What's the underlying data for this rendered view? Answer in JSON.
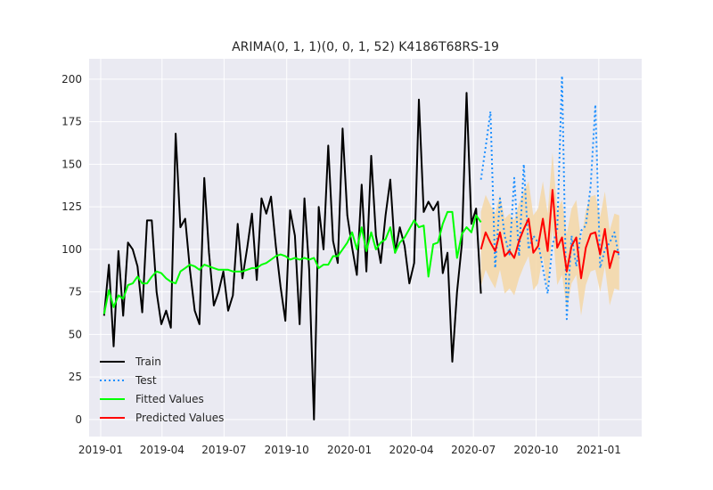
{
  "chart_data": {
    "type": "line",
    "title": "ARIMA(0, 1, 1)(0, 0, 1, 52) K4186T68RS-19",
    "xlabel": "",
    "ylabel": "",
    "ylim": [
      -10,
      212
    ],
    "x_ticks": [
      "2019-01",
      "2019-04",
      "2019-07",
      "2019-10",
      "2020-01",
      "2020-04",
      "2020-07",
      "2020-10",
      "2021-01"
    ],
    "y_ticks": [
      0,
      25,
      50,
      75,
      100,
      125,
      150,
      175,
      200
    ],
    "grid": true,
    "legend_position": "lower-left",
    "colors": {
      "background": "#eaeaf2",
      "grid": "#ffffff",
      "train": "#000000",
      "test": "#1e90ff",
      "fitted": "#00ff00",
      "predicted": "#ff0000",
      "interval": "#f5d7a6"
    },
    "series": [
      {
        "name": "Train",
        "style": "solid",
        "x": [
          "2019-01-06",
          "2019-01-13",
          "2019-01-20",
          "2019-01-27",
          "2019-02-03",
          "2019-02-10",
          "2019-02-17",
          "2019-02-24",
          "2019-03-03",
          "2019-03-10",
          "2019-03-17",
          "2019-03-24",
          "2019-03-31",
          "2019-04-07",
          "2019-04-14",
          "2019-04-21",
          "2019-04-28",
          "2019-05-05",
          "2019-05-12",
          "2019-05-19",
          "2019-05-26",
          "2019-06-02",
          "2019-06-09",
          "2019-06-16",
          "2019-06-23",
          "2019-06-30",
          "2019-07-07",
          "2019-07-14",
          "2019-07-21",
          "2019-07-28",
          "2019-08-04",
          "2019-08-11",
          "2019-08-18",
          "2019-08-25",
          "2019-09-01",
          "2019-09-08",
          "2019-09-15",
          "2019-09-22",
          "2019-09-29",
          "2019-10-06",
          "2019-10-13",
          "2019-10-20",
          "2019-10-27",
          "2019-11-03",
          "2019-11-10",
          "2019-11-17",
          "2019-11-24",
          "2019-12-01",
          "2019-12-08",
          "2019-12-15",
          "2019-12-22",
          "2019-12-29",
          "2020-01-05",
          "2020-01-12",
          "2020-01-19",
          "2020-01-26",
          "2020-02-02",
          "2020-02-09",
          "2020-02-16",
          "2020-02-23",
          "2020-03-01",
          "2020-03-08",
          "2020-03-15",
          "2020-03-22",
          "2020-03-29",
          "2020-04-05",
          "2020-04-12",
          "2020-04-19",
          "2020-04-26",
          "2020-05-03",
          "2020-05-10",
          "2020-05-17",
          "2020-05-24",
          "2020-05-31",
          "2020-06-07",
          "2020-06-14",
          "2020-06-21",
          "2020-06-28",
          "2020-07-05",
          "2020-07-12"
        ],
        "values": [
          61,
          91,
          43,
          99,
          61,
          104,
          100,
          90,
          63,
          117,
          117,
          75,
          56,
          64,
          54,
          168,
          113,
          118,
          88,
          64,
          56,
          142,
          98,
          67,
          75,
          87,
          64,
          73,
          115,
          83,
          101,
          121,
          82,
          130,
          121,
          131,
          102,
          78,
          58,
          123,
          108,
          56,
          130,
          88,
          0,
          125,
          100,
          161,
          105,
          92,
          171,
          120,
          101,
          85,
          138,
          87,
          155,
          108,
          92,
          120,
          141,
          98,
          113,
          102,
          80,
          92,
          188,
          122,
          128,
          123,
          128,
          86,
          98,
          34,
          75,
          103,
          192,
          115,
          124,
          74
        ]
      },
      {
        "name": "Test",
        "style": "dotted",
        "x": [
          "2020-07-12",
          "2020-07-19",
          "2020-07-26",
          "2020-08-02",
          "2020-08-09",
          "2020-08-16",
          "2020-08-23",
          "2020-08-30",
          "2020-09-06",
          "2020-09-13",
          "2020-09-20",
          "2020-09-27",
          "2020-10-04",
          "2020-10-11",
          "2020-10-18",
          "2020-10-25",
          "2020-11-01",
          "2020-11-08",
          "2020-11-15",
          "2020-11-22",
          "2020-11-29",
          "2020-12-06",
          "2020-12-13",
          "2020-12-20",
          "2020-12-27",
          "2021-01-03",
          "2021-01-10",
          "2021-01-17",
          "2021-01-24",
          "2021-01-31"
        ],
        "values": [
          141,
          160,
          181,
          89,
          130,
          108,
          97,
          142,
          96,
          150,
          100,
          108,
          104,
          89,
          74,
          103,
          111,
          202,
          59,
          108,
          90,
          111,
          114,
          137,
          185,
          89,
          100,
          104,
          110,
          95
        ]
      },
      {
        "name": "Fitted Values",
        "style": "solid",
        "x": [
          "2019-01-06",
          "2019-01-13",
          "2019-01-20",
          "2019-01-27",
          "2019-02-03",
          "2019-02-10",
          "2019-02-17",
          "2019-02-24",
          "2019-03-03",
          "2019-03-10",
          "2019-03-17",
          "2019-03-24",
          "2019-03-31",
          "2019-04-07",
          "2019-04-14",
          "2019-04-21",
          "2019-04-28",
          "2019-05-05",
          "2019-05-12",
          "2019-05-19",
          "2019-05-26",
          "2019-06-02",
          "2019-06-09",
          "2019-06-16",
          "2019-06-23",
          "2019-06-30",
          "2019-07-07",
          "2019-07-14",
          "2019-07-21",
          "2019-07-28",
          "2019-08-04",
          "2019-08-11",
          "2019-08-18",
          "2019-08-25",
          "2019-09-01",
          "2019-09-08",
          "2019-09-15",
          "2019-09-22",
          "2019-09-29",
          "2019-10-06",
          "2019-10-13",
          "2019-10-20",
          "2019-10-27",
          "2019-11-03",
          "2019-11-10",
          "2019-11-17",
          "2019-11-24",
          "2019-12-01",
          "2019-12-08",
          "2019-12-15",
          "2019-12-22",
          "2019-12-29",
          "2020-01-05",
          "2020-01-12",
          "2020-01-19",
          "2020-01-26",
          "2020-02-02",
          "2020-02-09",
          "2020-02-16",
          "2020-02-23",
          "2020-03-01",
          "2020-03-08",
          "2020-03-15",
          "2020-03-22",
          "2020-03-29",
          "2020-04-05",
          "2020-04-12",
          "2020-04-19",
          "2020-04-26",
          "2020-05-03",
          "2020-05-10",
          "2020-05-17",
          "2020-05-24",
          "2020-05-31",
          "2020-06-07",
          "2020-06-14",
          "2020-06-21",
          "2020-06-28",
          "2020-07-05",
          "2020-07-12"
        ],
        "values": [
          62,
          76,
          66,
          73,
          71,
          79,
          80,
          84,
          80,
          80,
          84,
          87,
          86,
          83,
          81,
          80,
          87,
          89,
          91,
          90,
          88,
          91,
          90,
          89,
          88,
          88,
          88,
          87,
          87,
          87,
          88,
          89,
          89,
          91,
          92,
          94,
          96,
          97,
          96,
          94,
          95,
          94,
          95,
          94,
          95,
          89,
          91,
          91,
          96,
          96,
          100,
          104,
          110,
          100,
          113,
          99,
          110,
          100,
          104,
          106,
          113,
          98,
          104,
          107,
          112,
          117,
          113,
          114,
          84,
          103,
          104,
          115,
          122,
          122,
          95,
          109,
          113,
          110,
          120,
          116
        ]
      },
      {
        "name": "Predicted Values",
        "style": "solid",
        "x": [
          "2020-07-12",
          "2020-07-19",
          "2020-07-26",
          "2020-08-02",
          "2020-08-09",
          "2020-08-16",
          "2020-08-23",
          "2020-08-30",
          "2020-09-06",
          "2020-09-13",
          "2020-09-20",
          "2020-09-27",
          "2020-10-04",
          "2020-10-11",
          "2020-10-18",
          "2020-10-25",
          "2020-11-01",
          "2020-11-08",
          "2020-11-15",
          "2020-11-22",
          "2020-11-29",
          "2020-12-06",
          "2020-12-13",
          "2020-12-20",
          "2020-12-27",
          "2021-01-03",
          "2021-01-10",
          "2021-01-17",
          "2021-01-24",
          "2021-01-31"
        ],
        "values": [
          100,
          110,
          104,
          99,
          110,
          96,
          99,
          95,
          105,
          112,
          118,
          98,
          102,
          118,
          99,
          135,
          101,
          107,
          87,
          102,
          107,
          83,
          101,
          109,
          110,
          97,
          112,
          89,
          99,
          98
        ]
      }
    ],
    "interval": {
      "x": [
        "2020-07-12",
        "2020-07-19",
        "2020-07-26",
        "2020-08-02",
        "2020-08-09",
        "2020-08-16",
        "2020-08-23",
        "2020-08-30",
        "2020-09-06",
        "2020-09-13",
        "2020-09-20",
        "2020-09-27",
        "2020-10-04",
        "2020-10-11",
        "2020-10-18",
        "2020-10-25",
        "2020-11-01",
        "2020-11-08",
        "2020-11-15",
        "2020-11-22",
        "2020-11-29",
        "2020-12-06",
        "2020-12-13",
        "2020-12-20",
        "2020-12-27",
        "2021-01-03",
        "2021-01-10",
        "2021-01-17",
        "2021-01-24",
        "2021-01-31"
      ],
      "upper": [
        122,
        132,
        126,
        121,
        132,
        118,
        121,
        117,
        127,
        134,
        140,
        120,
        124,
        140,
        121,
        157,
        123,
        129,
        109,
        124,
        129,
        105,
        123,
        131,
        132,
        119,
        134,
        111,
        121,
        120
      ],
      "lower": [
        78,
        88,
        82,
        77,
        88,
        74,
        77,
        73,
        83,
        90,
        96,
        76,
        80,
        96,
        77,
        113,
        79,
        85,
        65,
        80,
        85,
        61,
        79,
        87,
        88,
        75,
        90,
        67,
        77,
        76
      ]
    },
    "legend": [
      "Train",
      "Test",
      "Fitted Values",
      "Predicted Values"
    ]
  }
}
